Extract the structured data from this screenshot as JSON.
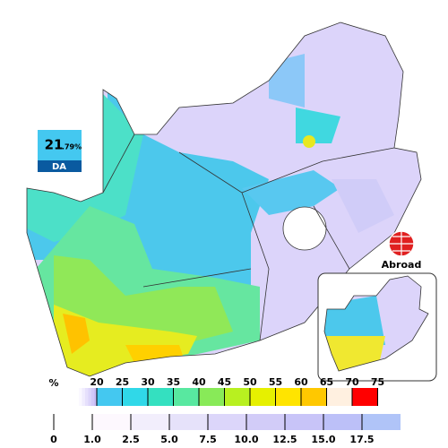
{
  "badge": {
    "value": "21",
    "decimal": ".79%",
    "party": "DA"
  },
  "abroad": "Abroad",
  "legend": {
    "unit": "%",
    "upper_labels": [
      "20",
      "25",
      "30",
      "35",
      "40",
      "45",
      "50",
      "55",
      "60",
      "65",
      "70",
      "75"
    ],
    "lower_labels": [
      "0",
      "1.0",
      "2.5",
      "5.0",
      "7.5",
      "10.0",
      "12.5",
      "15.0",
      "17.5"
    ]
  }
}
